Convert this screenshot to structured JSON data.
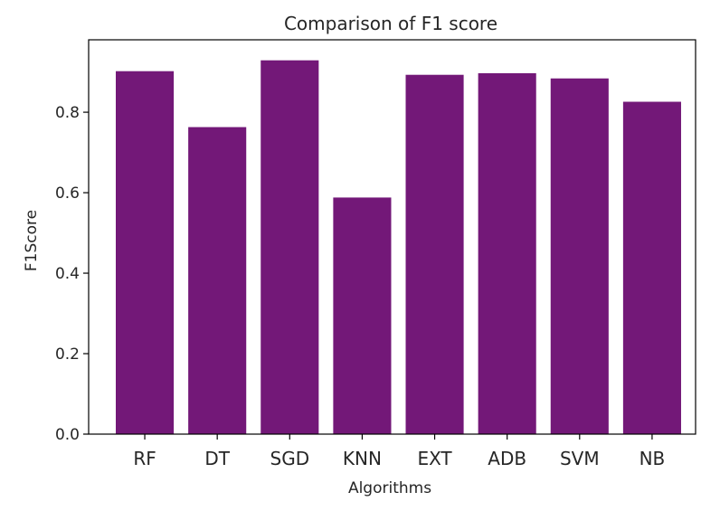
{
  "chart_data": {
    "type": "bar",
    "title": "Comparison of F1 score",
    "xlabel": "Algorithms",
    "ylabel": "F1Score",
    "categories": [
      "RF",
      "DT",
      "SGD",
      "KNN",
      "EXT",
      "ADB",
      "SVM",
      "NB"
    ],
    "values": [
      0.902,
      0.763,
      0.929,
      0.588,
      0.893,
      0.897,
      0.884,
      0.826
    ],
    "ylim": [
      0,
      0.98
    ],
    "yticks": [
      0.0,
      0.2,
      0.4,
      0.6,
      0.8
    ],
    "ytick_labels": [
      "0.0",
      "0.2",
      "0.4",
      "0.6",
      "0.8"
    ],
    "grid": false,
    "bar_color": "#731878"
  }
}
